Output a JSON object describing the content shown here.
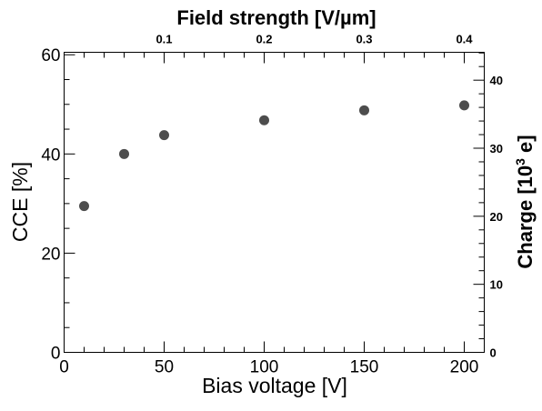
{
  "chart_data": {
    "type": "scatter",
    "x": [
      10,
      30,
      50,
      100,
      150,
      200
    ],
    "y": [
      29.5,
      40,
      43.8,
      46.8,
      48.8,
      49.8
    ],
    "xlabel": "Bias voltage [V]",
    "ylabel": "CCE [%]",
    "xlim": [
      0,
      210
    ],
    "ylim": [
      0,
      60.5
    ],
    "x_ticks": [
      "0",
      "50",
      "100",
      "150",
      "200"
    ],
    "y_ticks": [
      "0",
      "20",
      "40",
      "60"
    ],
    "top_axis": {
      "label": "Field strength  [V/µm]",
      "ticks": [
        "0.1",
        "0.2",
        "0.3",
        "0.4"
      ],
      "values": [
        0.1,
        0.2,
        0.3,
        0.4
      ],
      "range": [
        0,
        0.42
      ]
    },
    "right_axis": {
      "label_main": "Charge [10",
      "label_sup": "3",
      "label_end": " e]",
      "ticks": [
        "0",
        "10",
        "20",
        "30",
        "40"
      ],
      "values": [
        0,
        10,
        20,
        30,
        40
      ],
      "range": [
        0,
        44.1
      ]
    },
    "marker_color": "#4d4d4d",
    "grid": false
  }
}
